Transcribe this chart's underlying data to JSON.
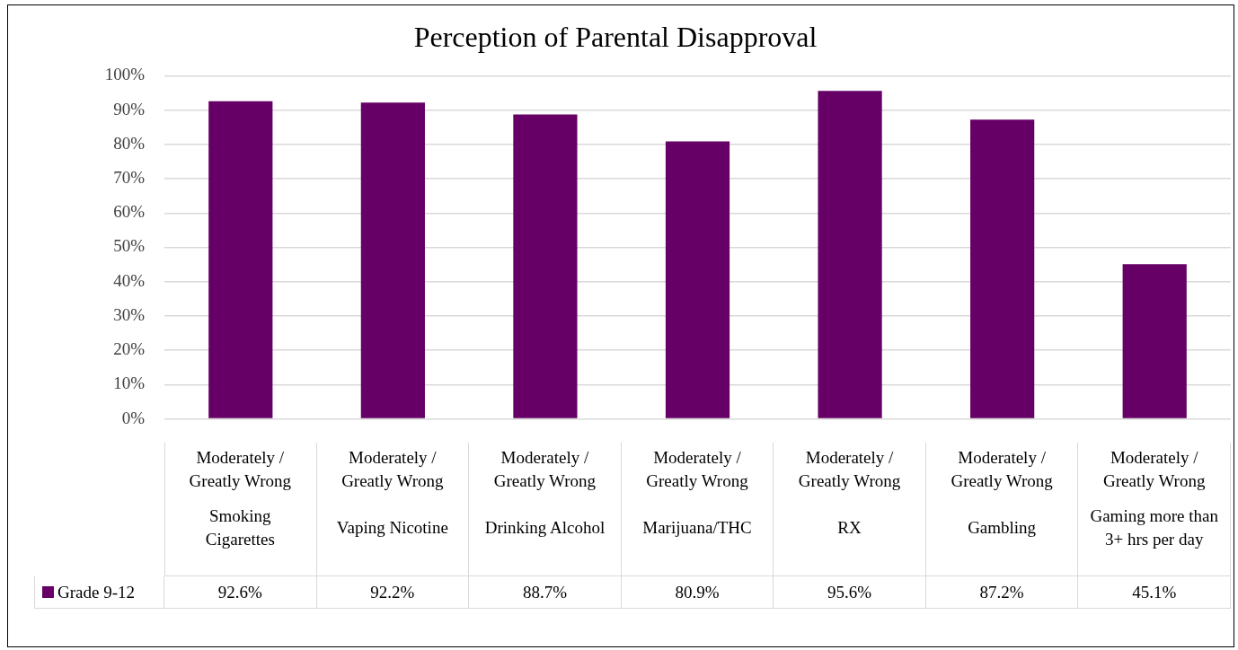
{
  "chart_data": {
    "type": "bar",
    "title": "Perception of Parental Disapproval",
    "categories": [
      "Moderately / Greatly Wrong\nSmoking Cigarettes",
      "Moderately / Greatly Wrong\nVaping Nicotine",
      "Moderately / Greatly Wrong\nDrinking Alcohol",
      "Moderately / Greatly Wrong\nMarijuana/THC",
      "Moderately / Greatly Wrong\nRX",
      "Moderately / Greatly Wrong\nGambling",
      "Moderately / Greatly Wrong\nGaming more than 3+ hrs per day"
    ],
    "series": [
      {
        "name": "Grade  9-12",
        "color": "#660066",
        "values": [
          92.6,
          92.2,
          88.7,
          80.9,
          95.6,
          87.2,
          45.1
        ],
        "value_labels": [
          "92.6%",
          "92.2%",
          "88.7%",
          "80.9%",
          "95.6%",
          "87.2%",
          "45.1%"
        ]
      }
    ],
    "ylim": [
      0,
      100
    ],
    "yticks": [
      {
        "value": 0,
        "label": "0%"
      },
      {
        "value": 10,
        "label": "10%"
      },
      {
        "value": 20,
        "label": "20%"
      },
      {
        "value": 30,
        "label": "30%"
      },
      {
        "value": 40,
        "label": "40%"
      },
      {
        "value": 50,
        "label": "50%"
      },
      {
        "value": 60,
        "label": "60%"
      },
      {
        "value": 70,
        "label": "70%"
      },
      {
        "value": 80,
        "label": "80%"
      },
      {
        "value": 90,
        "label": "90%"
      },
      {
        "value": 100,
        "label": "100%"
      }
    ],
    "grid": "y",
    "legend": "bottom left"
  }
}
